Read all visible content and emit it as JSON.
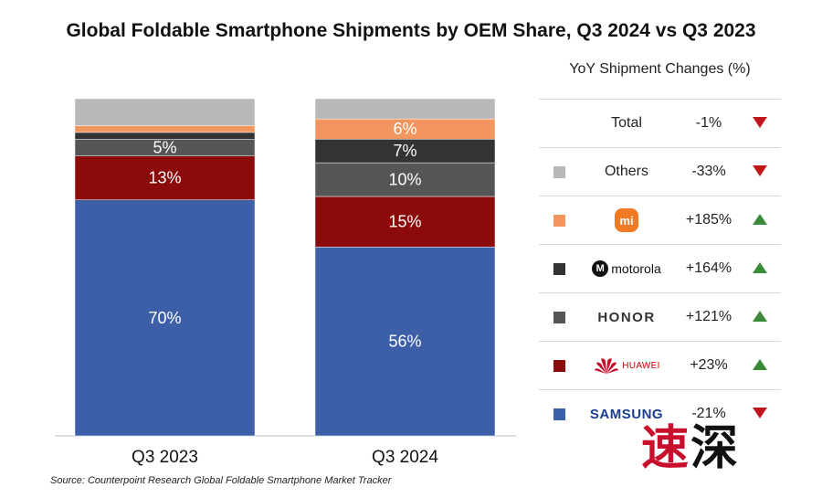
{
  "chart_data": {
    "type": "bar",
    "stacked": true,
    "title": "Global Foldable Smartphone Shipments by OEM Share, Q3 2024 vs Q3 2023",
    "categories": [
      "Q3 2023",
      "Q3 2024"
    ],
    "ylim": [
      0,
      100
    ],
    "series": [
      {
        "name": "Samsung",
        "values": [
          70,
          56
        ],
        "labels": [
          "70%",
          "56%"
        ],
        "color": "#3d5fa8"
      },
      {
        "name": "Huawei",
        "values": [
          13,
          15
        ],
        "labels": [
          "13%",
          "15%"
        ],
        "color": "#8b0a0a"
      },
      {
        "name": "Honor",
        "values": [
          5,
          10
        ],
        "labels": [
          "5%",
          "10%"
        ],
        "color": "#555555"
      },
      {
        "name": "Motorola",
        "values": [
          2,
          7
        ],
        "labels": [
          "",
          "7%"
        ],
        "color": "#333333"
      },
      {
        "name": "Xiaomi",
        "values": [
          2,
          6
        ],
        "labels": [
          "",
          "6%"
        ],
        "color": "#f2955e"
      },
      {
        "name": "Others",
        "values": [
          8,
          6
        ],
        "labels": [
          "",
          ""
        ],
        "color": "#b8b8b8"
      }
    ]
  },
  "yoy_table": {
    "header": "YoY Shipment Changes (%)",
    "rows": [
      {
        "brand": "Total",
        "change": "-1%",
        "direction": "down",
        "swatch": ""
      },
      {
        "brand": "Others",
        "change": "-33%",
        "direction": "down",
        "swatch": "#b8b8b8"
      },
      {
        "brand": "mi",
        "change": "+185%",
        "direction": "up",
        "swatch": "#f2955e"
      },
      {
        "brand": "motorola",
        "change": "+164%",
        "direction": "up",
        "swatch": "#333333"
      },
      {
        "brand": "HONOR",
        "change": "+121%",
        "direction": "up",
        "swatch": "#555555"
      },
      {
        "brand": "HUAWEI",
        "change": "+23%",
        "direction": "up",
        "swatch": "#8b0a0a"
      },
      {
        "brand": "SAMSUNG",
        "change": "-21%",
        "direction": "down",
        "swatch": "#3d5fa8"
      }
    ],
    "up_color": "#3a8a3a",
    "down_color": "#c0161c"
  },
  "source": "Source: Counterpoint Research Global Foldable Smartphone Market Tracker",
  "watermark": {
    "first": "速",
    "second": "深"
  }
}
